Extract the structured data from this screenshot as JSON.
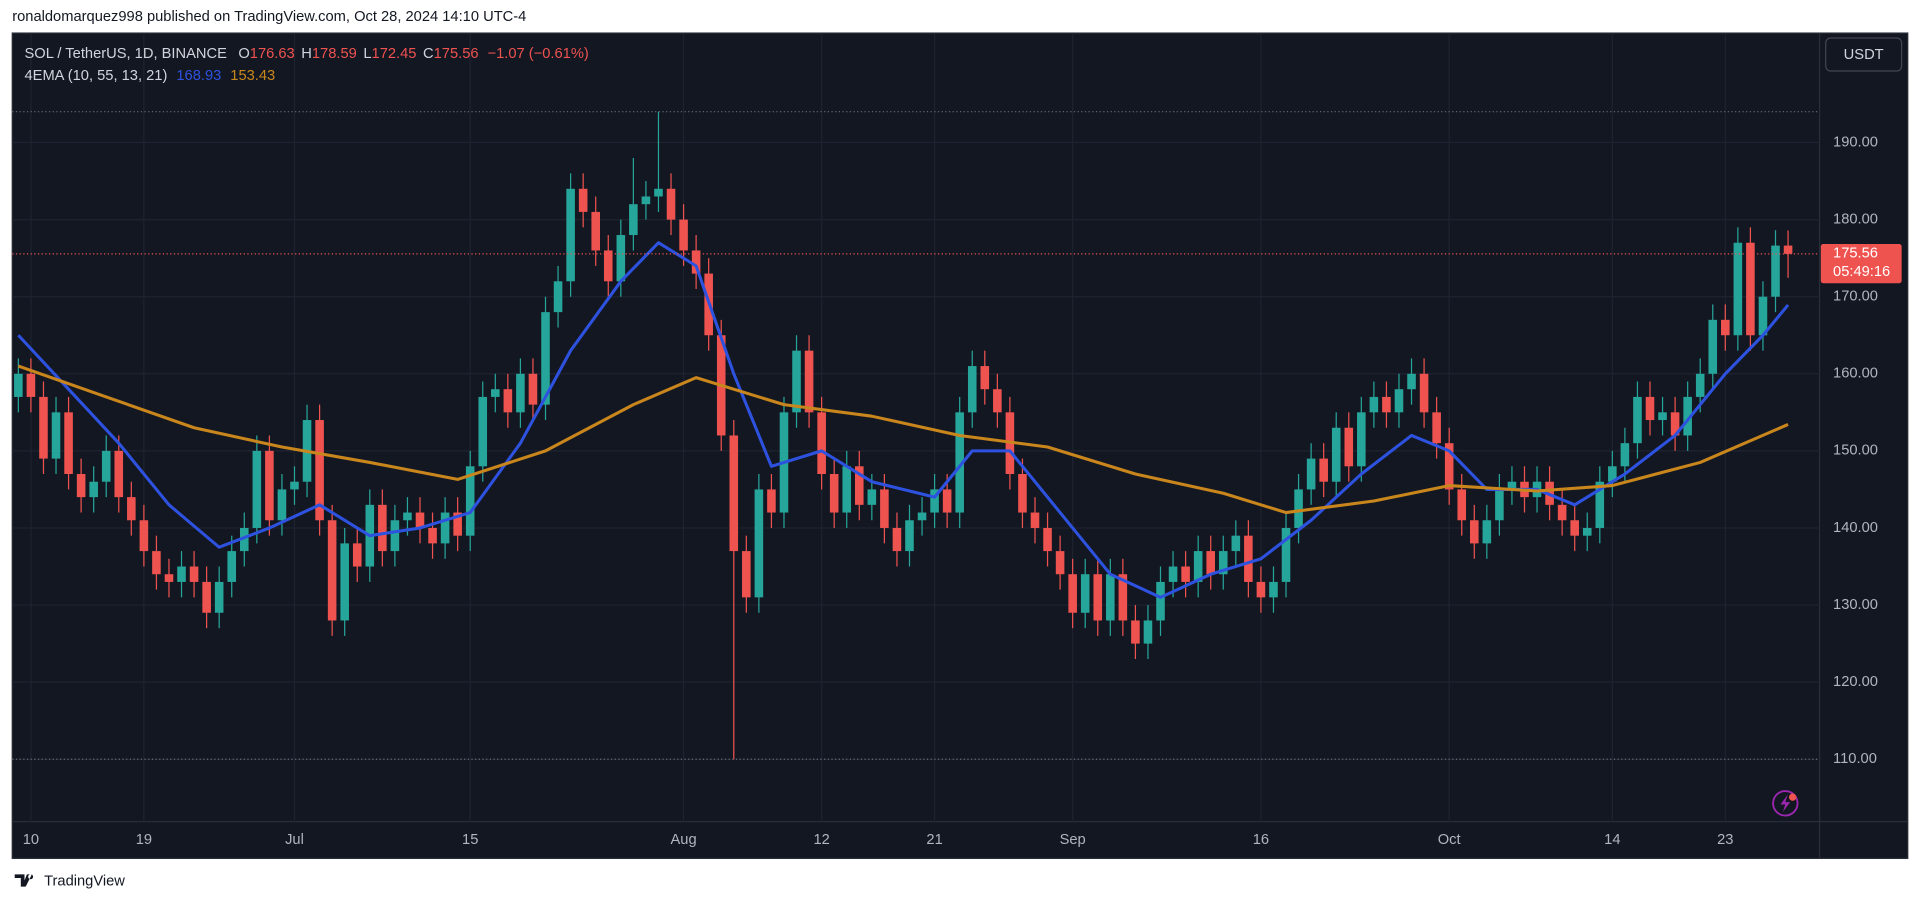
{
  "header": "ronaldomarquez998 published on TradingView.com, Oct 28, 2024 14:10 UTC-4",
  "footer": "TradingView",
  "chart_data": {
    "type": "candlestick",
    "title": "SOL / TetherUS, 1D, BINANCE",
    "ohlc_labels": [
      "O",
      "H",
      "L",
      "C"
    ],
    "change_label": "−1.07 (−0.61%)",
    "indicator": "4EMA (10, 55, 13, 21)",
    "currency": "USDT",
    "countdown": "05:49:16",
    "x": [
      "Jun 9",
      "Jun 10",
      "Jun 11",
      "Jun 12",
      "Jun 13",
      "Jun 14",
      "Jun 15",
      "Jun 16",
      "Jun 17",
      "Jun 18",
      "Jun 19",
      "Jun 20",
      "Jun 21",
      "Jun 22",
      "Jun 23",
      "Jun 24",
      "Jun 25",
      "Jun 26",
      "Jun 27",
      "Jun 28",
      "Jun 29",
      "Jun 30",
      "Jul 1",
      "Jul 2",
      "Jul 3",
      "Jul 4",
      "Jul 5",
      "Jul 6",
      "Jul 7",
      "Jul 8",
      "Jul 9",
      "Jul 10",
      "Jul 11",
      "Jul 12",
      "Jul 13",
      "Jul 14",
      "Jul 15",
      "Jul 16",
      "Jul 17",
      "Jul 18",
      "Jul 19",
      "Jul 20",
      "Jul 21",
      "Jul 22",
      "Jul 23",
      "Jul 24",
      "Jul 25",
      "Jul 26",
      "Jul 27",
      "Jul 28",
      "Jul 29",
      "Jul 30",
      "Jul 31",
      "Aug 1",
      "Aug 2",
      "Aug 3",
      "Aug 4",
      "Aug 5",
      "Aug 6",
      "Aug 7",
      "Aug 8",
      "Aug 9",
      "Aug 10",
      "Aug 11",
      "Aug 12",
      "Aug 13",
      "Aug 14",
      "Aug 15",
      "Aug 16",
      "Aug 17",
      "Aug 18",
      "Aug 19",
      "Aug 20",
      "Aug 21",
      "Aug 22",
      "Aug 23",
      "Aug 24",
      "Aug 25",
      "Aug 26",
      "Aug 27",
      "Aug 28",
      "Aug 29",
      "Aug 30",
      "Aug 31",
      "Sep 1",
      "Sep 2",
      "Sep 3",
      "Sep 4",
      "Sep 5",
      "Sep 6",
      "Sep 7",
      "Sep 8",
      "Sep 9",
      "Sep 10",
      "Sep 11",
      "Sep 12",
      "Sep 13",
      "Sep 14",
      "Sep 15",
      "Sep 16",
      "Sep 17",
      "Sep 18",
      "Sep 19",
      "Sep 20",
      "Sep 21",
      "Sep 22",
      "Sep 23",
      "Sep 24",
      "Sep 25",
      "Sep 26",
      "Sep 27",
      "Sep 28",
      "Sep 29",
      "Sep 30",
      "Oct 1",
      "Oct 2",
      "Oct 3",
      "Oct 4",
      "Oct 5",
      "Oct 6",
      "Oct 7",
      "Oct 8",
      "Oct 9",
      "Oct 10",
      "Oct 11",
      "Oct 12",
      "Oct 13",
      "Oct 14",
      "Oct 15",
      "Oct 16",
      "Oct 17",
      "Oct 18",
      "Oct 19",
      "Oct 20",
      "Oct 21",
      "Oct 22",
      "Oct 23",
      "Oct 24",
      "Oct 25",
      "Oct 26",
      "Oct 27",
      "Oct 28"
    ],
    "open": [
      157,
      160,
      157,
      149,
      155,
      147,
      144,
      146,
      150,
      144,
      141,
      137,
      134,
      133,
      135,
      133,
      129,
      133,
      137,
      140,
      150,
      141,
      145,
      146,
      154,
      141,
      128,
      138,
      135,
      143,
      137,
      141,
      142,
      140,
      138,
      142,
      139,
      148,
      157,
      158,
      155,
      160,
      156,
      168,
      172,
      184,
      181,
      176,
      172,
      178,
      182,
      183,
      184,
      180,
      176,
      173,
      165,
      152,
      137,
      131,
      145,
      142,
      155,
      163,
      155,
      147,
      142,
      148,
      143,
      145,
      140,
      137,
      141,
      142,
      145,
      142,
      155,
      161,
      158,
      155,
      147,
      142,
      140,
      137,
      134,
      129,
      134,
      128,
      134,
      128,
      125,
      128,
      133,
      135,
      133,
      137,
      134,
      137,
      139,
      133,
      131,
      133,
      140,
      145,
      149,
      146,
      153,
      148,
      155,
      157,
      155,
      158,
      160,
      155,
      151,
      145,
      141,
      138,
      141,
      145,
      146,
      144,
      146,
      143,
      141,
      139,
      140,
      146,
      148,
      151,
      157,
      154,
      155,
      152,
      157,
      160,
      167,
      165,
      177,
      165,
      170,
      176.63
    ],
    "high": [
      162,
      162,
      159,
      157,
      157,
      149,
      148,
      152,
      152,
      146,
      143,
      139,
      136,
      137,
      137,
      135,
      135,
      139,
      142,
      152,
      152,
      147,
      148,
      156,
      156,
      143,
      140,
      140,
      145,
      145,
      143,
      144,
      144,
      142,
      144,
      144,
      150,
      159,
      160,
      160,
      162,
      162,
      170,
      174,
      186,
      186,
      183,
      178,
      180,
      188,
      185,
      194,
      186,
      182,
      178,
      175,
      167,
      154,
      139,
      147,
      147,
      157,
      165,
      165,
      157,
      149,
      150,
      150,
      147,
      147,
      142,
      143,
      144,
      147,
      147,
      157,
      163,
      163,
      160,
      157,
      149,
      144,
      142,
      139,
      136,
      136,
      136,
      136,
      136,
      130,
      130,
      135,
      137,
      137,
      139,
      139,
      139,
      141,
      141,
      135,
      135,
      142,
      147,
      151,
      151,
      155,
      155,
      157,
      159,
      159,
      160,
      162,
      162,
      157,
      153,
      147,
      143,
      143,
      147,
      148,
      148,
      148,
      148,
      145,
      143,
      142,
      148,
      150,
      153,
      159,
      159,
      157,
      157,
      159,
      162,
      169,
      169,
      179,
      179,
      172,
      178.63,
      178.59
    ],
    "low": [
      155,
      155,
      147,
      147,
      145,
      142,
      142,
      144,
      142,
      139,
      135,
      132,
      131,
      131,
      131,
      127,
      127,
      131,
      135,
      138,
      139,
      139,
      143,
      144,
      139,
      126,
      126,
      133,
      133,
      135,
      135,
      139,
      138,
      136,
      136,
      137,
      137,
      146,
      155,
      153,
      153,
      154,
      154,
      166,
      170,
      179,
      174,
      170,
      170,
      176,
      180,
      181,
      178,
      174,
      171,
      163,
      150,
      110,
      129,
      129,
      140,
      140,
      153,
      153,
      145,
      140,
      140,
      141,
      141,
      138,
      135,
      135,
      139,
      140,
      140,
      140,
      153,
      156,
      153,
      145,
      140,
      138,
      135,
      132,
      127,
      127,
      126,
      126,
      126,
      123,
      123,
      126,
      131,
      131,
      131,
      132,
      132,
      135,
      131,
      129,
      129,
      131,
      138,
      143,
      144,
      144,
      146,
      146,
      153,
      153,
      153,
      156,
      153,
      149,
      143,
      139,
      136,
      136,
      139,
      143,
      142,
      142,
      141,
      139,
      137,
      137,
      138,
      144,
      146,
      149,
      152,
      152,
      150,
      150,
      155,
      158,
      163,
      163,
      163,
      163,
      168,
      172.45
    ],
    "close": [
      160,
      157,
      149,
      155,
      147,
      144,
      146,
      150,
      144,
      141,
      137,
      134,
      133,
      135,
      133,
      129,
      133,
      137,
      140,
      150,
      141,
      145,
      146,
      154,
      141,
      128,
      138,
      135,
      143,
      137,
      141,
      142,
      140,
      138,
      142,
      139,
      148,
      157,
      158,
      155,
      160,
      156,
      168,
      172,
      184,
      181,
      176,
      172,
      178,
      182,
      183,
      184,
      180,
      176,
      173,
      165,
      152,
      137,
      131,
      145,
      142,
      155,
      163,
      155,
      147,
      142,
      148,
      143,
      145,
      140,
      137,
      141,
      142,
      145,
      142,
      155,
      161,
      158,
      155,
      147,
      142,
      140,
      137,
      134,
      129,
      134,
      128,
      134,
      128,
      125,
      128,
      133,
      135,
      133,
      137,
      134,
      137,
      139,
      133,
      131,
      133,
      140,
      145,
      149,
      146,
      153,
      148,
      155,
      157,
      155,
      158,
      160,
      155,
      151,
      145,
      141,
      138,
      141,
      145,
      146,
      144,
      146,
      143,
      141,
      139,
      140,
      146,
      148,
      151,
      157,
      154,
      155,
      152,
      157,
      160,
      167,
      165,
      177,
      165,
      170,
      176.63,
      175.56
    ],
    "up_color": "#26a69a",
    "down_color": "#ef5350",
    "series": [
      {
        "color": "#2e52e0",
        "x": [
          "Jun 9",
          "Jun 13",
          "Jun 17",
          "Jun 21",
          "Jun 25",
          "Jun 29",
          "Jul 3",
          "Jul 7",
          "Jul 11",
          "Jul 15",
          "Jul 19",
          "Jul 23",
          "Jul 27",
          "Jul 30",
          "Aug 2",
          "Aug 5",
          "Aug 8",
          "Aug 12",
          "Aug 16",
          "Aug 21",
          "Aug 24",
          "Aug 27",
          "Aug 31",
          "Sep 4",
          "Sep 8",
          "Sep 12",
          "Sep 16",
          "Sep 20",
          "Sep 24",
          "Sep 28",
          "Oct 1",
          "Oct 4",
          "Oct 8",
          "Oct 11",
          "Oct 15",
          "Oct 19",
          "Oct 23",
          "Oct 26",
          "Oct 28"
        ],
        "values": [
          165,
          158,
          151,
          143,
          137.5,
          140,
          143,
          139,
          140,
          142,
          151,
          163,
          172,
          177,
          174,
          160,
          148,
          150,
          146,
          144,
          150,
          150,
          142,
          134,
          131,
          134,
          136,
          141,
          147,
          152,
          150,
          145,
          145,
          143,
          147,
          152,
          160,
          165,
          168.93
        ]
      },
      {
        "color": "#c9861c",
        "x": [
          "Jun 9",
          "Jun 16",
          "Jun 23",
          "Jun 30",
          "Jul 7",
          "Jul 14",
          "Jul 21",
          "Jul 28",
          "Aug 2",
          "Aug 9",
          "Aug 16",
          "Aug 23",
          "Aug 30",
          "Sep 6",
          "Sep 13",
          "Sep 18",
          "Sep 25",
          "Oct 1",
          "Oct 8",
          "Oct 14",
          "Oct 21",
          "Oct 28"
        ],
        "values": [
          161,
          157,
          153,
          150.5,
          148.5,
          146.3,
          150,
          156,
          159.5,
          156,
          154.5,
          152,
          150.5,
          147,
          144.5,
          142,
          143.5,
          145.5,
          144.8,
          145.5,
          148.5,
          153.43
        ]
      }
    ],
    "ylim": [
      101.9,
      204.2
    ],
    "yticks": [
      {
        "value": 110,
        "label": "110.00"
      },
      {
        "value": 120,
        "label": "120.00"
      },
      {
        "value": 130,
        "label": "130.00"
      },
      {
        "value": 140,
        "label": "140.00"
      },
      {
        "value": 150,
        "label": "150.00"
      },
      {
        "value": 160,
        "label": "160.00"
      },
      {
        "value": 170,
        "label": "170.00"
      },
      {
        "value": 180,
        "label": "180.00"
      },
      {
        "value": 190,
        "label": "190.00"
      }
    ],
    "xticks": [
      {
        "value": "Jun 10",
        "label": "10"
      },
      {
        "value": "Jun 19",
        "label": "19"
      },
      {
        "value": "Jul 1",
        "label": "Jul"
      },
      {
        "value": "Jul 15",
        "label": "15"
      },
      {
        "value": "Aug 1",
        "label": "Aug"
      },
      {
        "value": "Aug 12",
        "label": "12"
      },
      {
        "value": "Aug 21",
        "label": "21"
      },
      {
        "value": "Sep 1",
        "label": "Sep"
      },
      {
        "value": "Sep 16",
        "label": "16"
      },
      {
        "value": "Oct 1",
        "label": "Oct"
      },
      {
        "value": "Oct 14",
        "label": "14"
      },
      {
        "value": "Oct 23",
        "label": "23"
      }
    ],
    "grid": true
  }
}
